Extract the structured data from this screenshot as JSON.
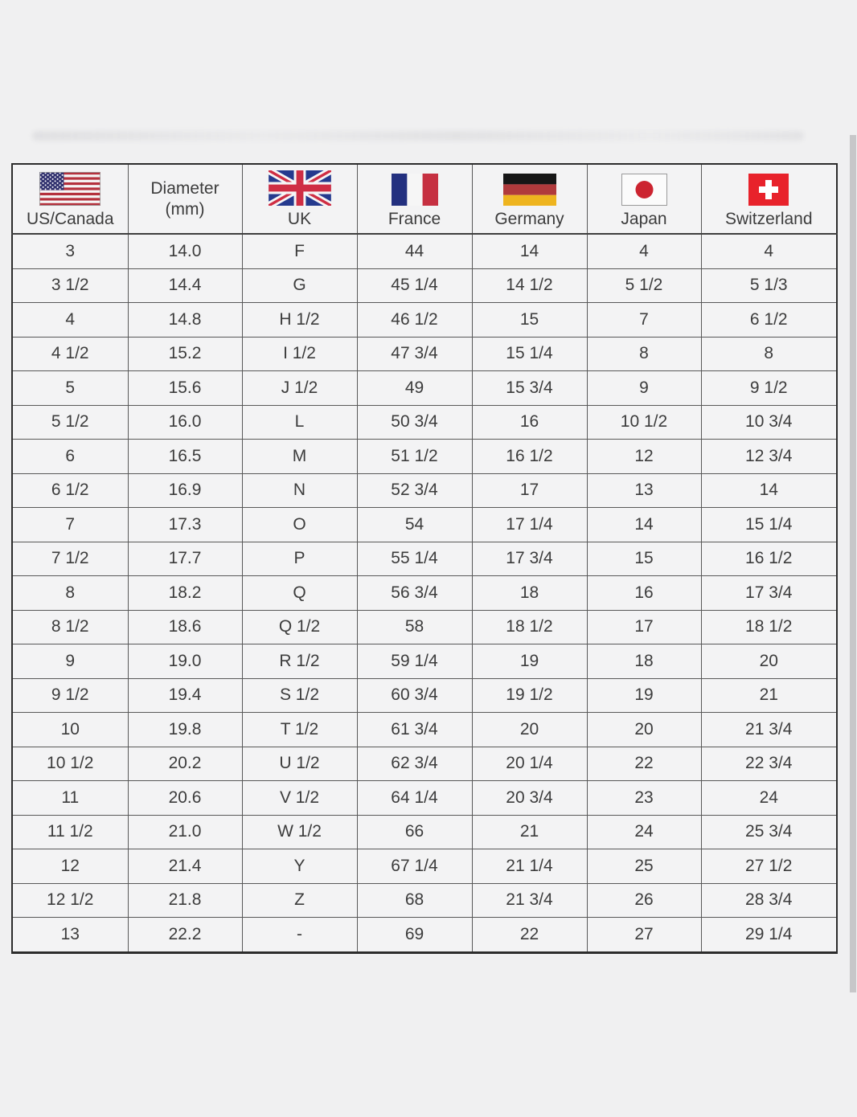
{
  "chart_data": {
    "type": "table",
    "columns": [
      {
        "label": "US/Canada",
        "icon": "us-canada-flag"
      },
      {
        "label": "Diameter (mm)",
        "label_lines": [
          "Diameter",
          "(mm)"
        ],
        "icon": null
      },
      {
        "label": "UK",
        "icon": "uk-flag"
      },
      {
        "label": "France",
        "icon": "france-flag"
      },
      {
        "label": "Germany",
        "icon": "germany-flag"
      },
      {
        "label": "Japan",
        "icon": "japan-flag"
      },
      {
        "label": "Switzerland",
        "icon": "switzerland-flag"
      }
    ],
    "rows": [
      [
        "3",
        "14.0",
        "F",
        "44",
        "14",
        "4",
        "4"
      ],
      [
        "3 1/2",
        "14.4",
        "G",
        "45 1/4",
        "14 1/2",
        "5 1/2",
        "5 1/3"
      ],
      [
        "4",
        "14.8",
        "H 1/2",
        "46 1/2",
        "15",
        "7",
        "6 1/2"
      ],
      [
        "4 1/2",
        "15.2",
        "I 1/2",
        "47 3/4",
        "15 1/4",
        "8",
        "8"
      ],
      [
        "5",
        "15.6",
        "J 1/2",
        "49",
        "15 3/4",
        "9",
        "9 1/2"
      ],
      [
        "5 1/2",
        "16.0",
        "L",
        "50 3/4",
        "16",
        "10 1/2",
        "10 3/4"
      ],
      [
        "6",
        "16.5",
        "M",
        "51 1/2",
        "16 1/2",
        "12",
        "12 3/4"
      ],
      [
        "6 1/2",
        "16.9",
        "N",
        "52 3/4",
        "17",
        "13",
        "14"
      ],
      [
        "7",
        "17.3",
        "O",
        "54",
        "17 1/4",
        "14",
        "15 1/4"
      ],
      [
        "7 1/2",
        "17.7",
        "P",
        "55 1/4",
        "17 3/4",
        "15",
        "16 1/2"
      ],
      [
        "8",
        "18.2",
        "Q",
        "56 3/4",
        "18",
        "16",
        "17 3/4"
      ],
      [
        "8 1/2",
        "18.6",
        "Q 1/2",
        "58",
        "18 1/2",
        "17",
        "18 1/2"
      ],
      [
        "9",
        "19.0",
        "R 1/2",
        "59 1/4",
        "19",
        "18",
        "20"
      ],
      [
        "9 1/2",
        "19.4",
        "S 1/2",
        "60 3/4",
        "19 1/2",
        "19",
        "21"
      ],
      [
        "10",
        "19.8",
        "T 1/2",
        "61 3/4",
        "20",
        "20",
        "21 3/4"
      ],
      [
        "10 1/2",
        "20.2",
        "U 1/2",
        "62 3/4",
        "20 1/4",
        "22",
        "22 3/4"
      ],
      [
        "11",
        "20.6",
        "V 1/2",
        "64 1/4",
        "20 3/4",
        "23",
        "24"
      ],
      [
        "11 1/2",
        "21.0",
        "W 1/2",
        "66",
        "21",
        "24",
        "25 3/4"
      ],
      [
        "12",
        "21.4",
        "Y",
        "67 1/4",
        "21 1/4",
        "25",
        "27 1/2"
      ],
      [
        "12 1/2",
        "21.8",
        "Z",
        "68",
        "21 3/4",
        "26",
        "28 3/4"
      ],
      [
        "13",
        "22.2",
        "-",
        "69",
        "22",
        "27",
        "29 1/4"
      ]
    ],
    "layout_hints": {
      "grid": true,
      "header_icons": "country flags",
      "alignment": "center"
    }
  },
  "colors": {
    "page_background": "#f0f0f1",
    "table_background": "#f3f3f4",
    "table_border": "#2c2c2c",
    "grid_line": "#585858",
    "text": "#3c3c3c",
    "scrollbar": "#c7c7c9",
    "us_flag_red": "#b5313d",
    "us_flag_blue": "#31316e",
    "uk_flag_navy": "#253a8e",
    "uk_flag_red": "#cf2e44",
    "france_flag_blue": "#23307f",
    "france_flag_red": "#c63041",
    "germany_flag_black": "#161616",
    "germany_flag_red": "#b03a3c",
    "germany_flag_gold": "#eeb41f",
    "japan_flag_red": "#cc2430",
    "swiss_flag_red": "#e8222b"
  }
}
